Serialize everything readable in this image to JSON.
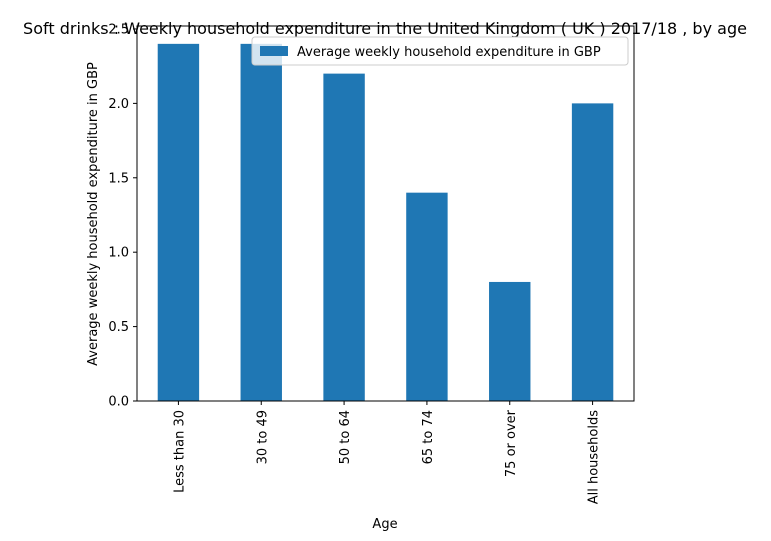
{
  "chart_data": {
    "type": "bar",
    "title": "Soft drinks : Weekly household expenditure in the United Kingdom ( UK ) 2017/18 , by age",
    "xlabel": "Age",
    "ylabel": "Average weekly household expenditure in GBP",
    "categories": [
      "Less than 30",
      "30 to 49",
      "50 to 64",
      "65 to 74",
      "75 or over",
      "All households"
    ],
    "series": [
      {
        "name": "Average weekly household expenditure in GBP",
        "values": [
          2.4,
          2.4,
          2.2,
          1.4,
          0.8,
          2.0
        ],
        "color": "#1f77b4"
      }
    ],
    "ylim": [
      0,
      2.52
    ],
    "yticks": [
      "0.0",
      "0.5",
      "1.0",
      "1.5",
      "2.0",
      "2.5"
    ],
    "grid": false,
    "legend_position": "upper-right"
  }
}
